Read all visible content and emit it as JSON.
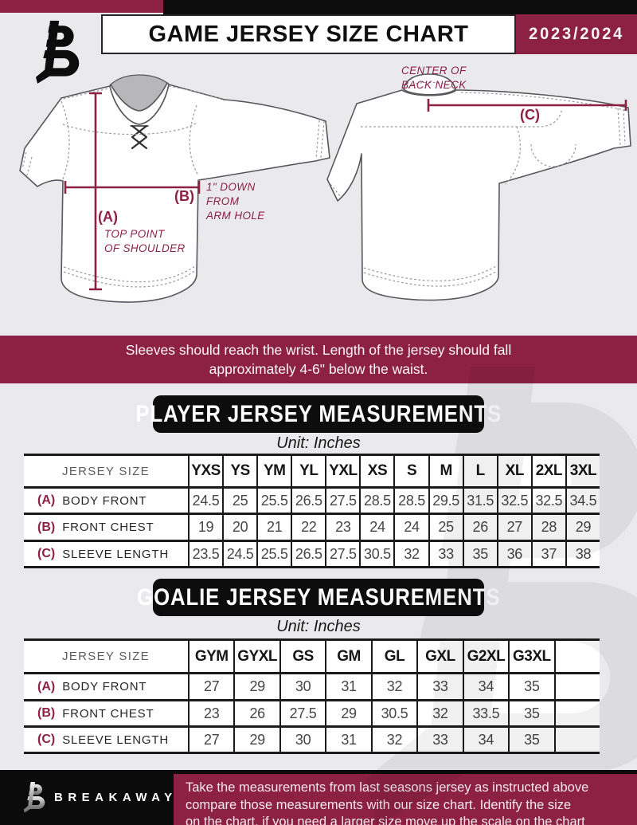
{
  "colors": {
    "maroon": "#8D2144",
    "black": "#0D0D0D",
    "page_bg": "#EAEAEC"
  },
  "header": {
    "title": "GAME JERSEY SIZE CHART",
    "season": "2023/2024",
    "logo": "breakaway-b-monogram"
  },
  "diagram": {
    "front": {
      "a_label": "(A)",
      "a_note_line1": "TOP POINT",
      "a_note_line2": "OF SHOULDER",
      "b_label": "(B)",
      "b_note_line1": "1\" DOWN",
      "b_note_line2": "FROM",
      "b_note_line3": "ARM HOLE"
    },
    "back": {
      "c_label": "(C)",
      "c_note_line1": "CENTER OF",
      "c_note_line2": "BACK NECK"
    }
  },
  "banner": {
    "line1": "Sleeves should reach the wrist. Length of the jersey should fall",
    "line2": "approximately 4-6\" below the waist."
  },
  "player": {
    "section_title": "PLAYER JERSEY MEASUREMENTS",
    "unit": "Unit: Inches",
    "table": {
      "header": "JERSEY SIZE",
      "sizes": [
        "YXS",
        "YS",
        "YM",
        "YL",
        "YXL",
        "XS",
        "S",
        "M",
        "L",
        "XL",
        "2XL",
        "3XL"
      ],
      "rows": [
        {
          "key": "(A)",
          "label": "BODY FRONT",
          "values": [
            "24.5",
            "25",
            "25.5",
            "26.5",
            "27.5",
            "28.5",
            "28.5",
            "29.5",
            "31.5",
            "32.5",
            "32.5",
            "34.5"
          ]
        },
        {
          "key": "(B)",
          "label": "FRONT CHEST",
          "values": [
            "19",
            "20",
            "21",
            "22",
            "23",
            "24",
            "24",
            "25",
            "26",
            "27",
            "28",
            "29"
          ]
        },
        {
          "key": "(C)",
          "label": "SLEEVE LENGTH",
          "values": [
            "23.5",
            "24.5",
            "25.5",
            "26.5",
            "27.5",
            "30.5",
            "32",
            "33",
            "35",
            "36",
            "37",
            "38"
          ]
        }
      ]
    }
  },
  "goalie": {
    "section_title": "GOALIE JERSEY MEASUREMENTS",
    "unit": "Unit: Inches",
    "table": {
      "header": "JERSEY SIZE",
      "sizes": [
        "GYM",
        "GYXL",
        "GS",
        "GM",
        "GL",
        "GXL",
        "G2XL",
        "G3XL",
        ""
      ],
      "rows": [
        {
          "key": "(A)",
          "label": "BODY FRONT",
          "values": [
            "27",
            "29",
            "30",
            "31",
            "32",
            "33",
            "34",
            "35",
            ""
          ]
        },
        {
          "key": "(B)",
          "label": "FRONT CHEST",
          "values": [
            "23",
            "26",
            "27.5",
            "29",
            "30.5",
            "32",
            "33.5",
            "35",
            ""
          ]
        },
        {
          "key": "(C)",
          "label": "SLEEVE LENGTH",
          "values": [
            "27",
            "29",
            "30",
            "31",
            "32",
            "33",
            "34",
            "35",
            ""
          ]
        }
      ]
    }
  },
  "footer": {
    "brand": "BREAKAWAY",
    "note_line1": "Take the measurements from last seasons jersey as instructed above",
    "note_line2": "compare those measurements  with our size chart. Identify the size",
    "note_line3": "on the chart, if you need a larger size move up the scale on the chart"
  }
}
